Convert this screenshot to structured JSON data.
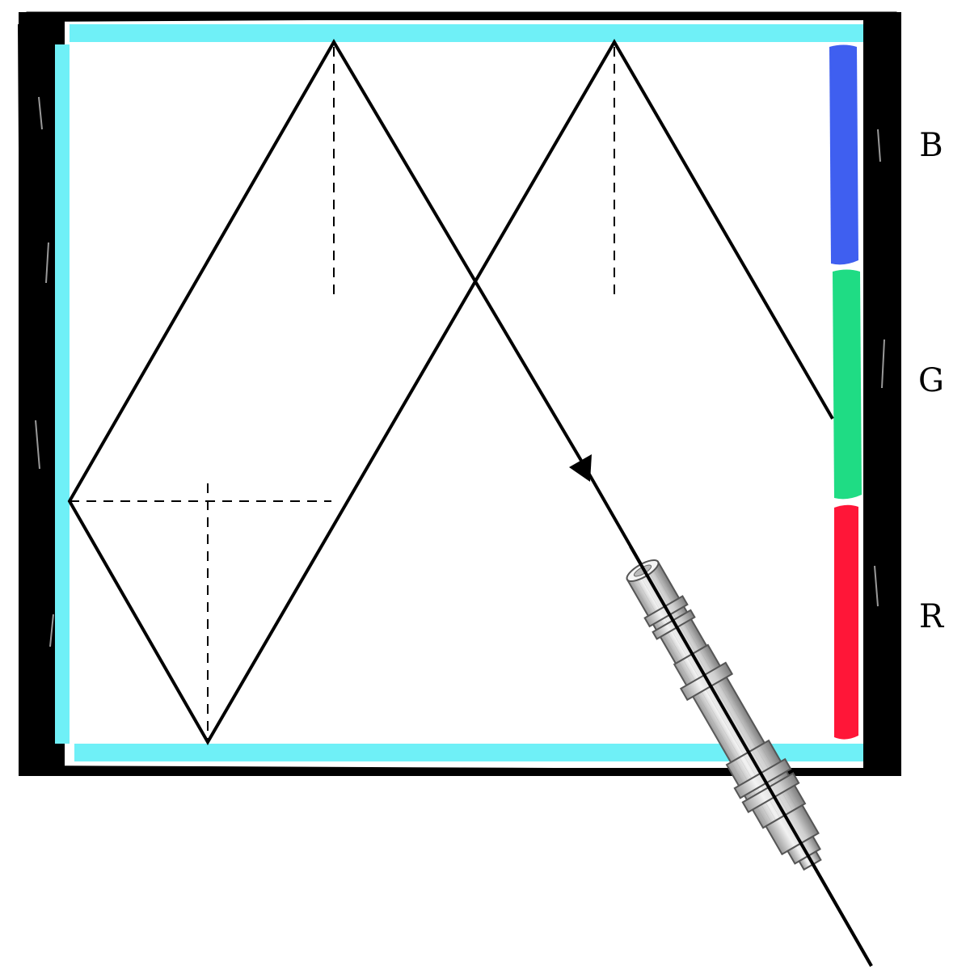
{
  "labels": {
    "blue": "B",
    "green": "G",
    "red": "R"
  },
  "colors": {
    "frame": "#000000",
    "mirror": "#6ff0f7",
    "sensor_blue": "#3f5ff0",
    "sensor_green": "#1fdc84",
    "sensor_red": "#ff1638",
    "ray": "#000000",
    "endoscope_body": "#d9d9d9"
  },
  "icons": {
    "light_source": "endoscope-icon",
    "direction": "arrowhead-icon"
  }
}
